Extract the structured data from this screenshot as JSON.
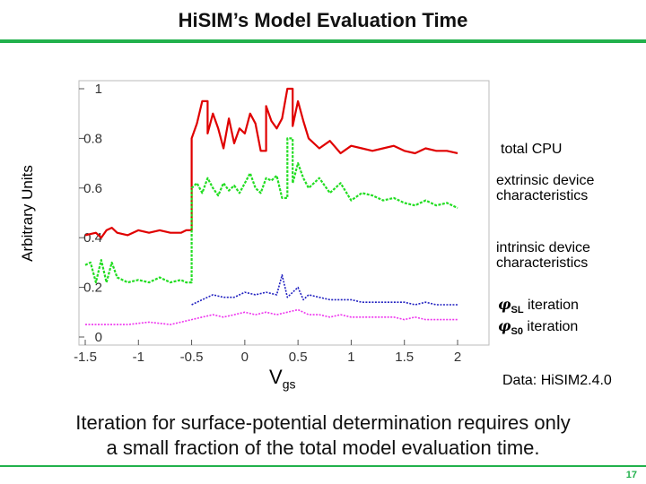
{
  "title": "HiSIM’s Model Evaluation Time",
  "ylabel": "Arbitrary Units",
  "xlabel_main": "V",
  "xlabel_sub": "gs",
  "legend": {
    "total_cpu": "total CPU",
    "extrinsic": "extrinsic device characteristics",
    "intrinsic": "intrinsic device characteristics",
    "phi_sl_sym": "φ",
    "phi_sl_sub": "SL",
    "phi_sl_text": " iteration",
    "phi_s0_sym": "φ",
    "phi_s0_sub": "S0",
    "phi_s0_text": " iteration"
  },
  "note": "Data: HiSIM2.4.0",
  "caption_line1": "Iteration for surface-potential determination requires only",
  "caption_line2": "a small fraction of the total model evaluation time.",
  "page_number": "17",
  "colors": {
    "accent": "#22b14c",
    "total": "#e00000",
    "extrinsic": "#22dd22",
    "phi_sl": "#2020c0",
    "phi_s0": "#ee33ee"
  },
  "chart_data": {
    "type": "line",
    "xlim": [
      -1.5,
      2.0
    ],
    "ylim": [
      0,
      1.0
    ],
    "xticks": [
      "-1.5",
      "-1",
      "-0.5",
      "0",
      "0.5",
      "1",
      "1.5",
      "2"
    ],
    "xtick_values": [
      -1.5,
      -1,
      -0.5,
      0,
      0.5,
      1,
      1.5,
      2
    ],
    "yticks": [
      "0",
      "0.2",
      "0.4",
      "0.6",
      "0.8",
      "1"
    ],
    "ytick_values": [
      0,
      0.2,
      0.4,
      0.6,
      0.8,
      1
    ],
    "grid": false,
    "series": [
      {
        "name": "total CPU",
        "color": "#e00000",
        "x": [
          -1.5,
          -1.4,
          -1.35,
          -1.3,
          -1.25,
          -1.2,
          -1.1,
          -1.0,
          -0.9,
          -0.8,
          -0.7,
          -0.6,
          -0.55,
          -0.5,
          -0.45,
          -0.4,
          -0.35,
          -0.3,
          -0.25,
          -0.2,
          -0.15,
          -0.1,
          -0.05,
          0,
          0.05,
          0.1,
          0.15,
          0.2,
          0.25,
          0.3,
          0.35,
          0.4,
          0.45,
          0.5,
          0.55,
          0.6,
          0.7,
          0.8,
          0.9,
          1.0,
          1.1,
          1.2,
          1.3,
          1.4,
          1.5,
          1.6,
          1.7,
          1.8,
          1.9,
          2.0
        ],
        "y": [
          0.41,
          0.42,
          0.4,
          0.43,
          0.44,
          0.42,
          0.41,
          0.43,
          0.42,
          0.43,
          0.42,
          0.42,
          0.43,
          0.8,
          0.86,
          0.95,
          0.82,
          0.9,
          0.84,
          0.76,
          0.88,
          0.78,
          0.84,
          0.82,
          0.9,
          0.86,
          0.75,
          0.93,
          0.87,
          0.84,
          0.88,
          1.0,
          0.85,
          0.95,
          0.87,
          0.8,
          0.76,
          0.79,
          0.74,
          0.77,
          0.76,
          0.75,
          0.76,
          0.77,
          0.75,
          0.74,
          0.76,
          0.75,
          0.75,
          0.74
        ]
      },
      {
        "name": "extrinsic device characteristics",
        "color": "#22dd22",
        "x": [
          -1.5,
          -1.45,
          -1.4,
          -1.35,
          -1.3,
          -1.25,
          -1.2,
          -1.1,
          -1.0,
          -0.9,
          -0.8,
          -0.7,
          -0.6,
          -0.55,
          -0.5,
          -0.45,
          -0.4,
          -0.35,
          -0.3,
          -0.25,
          -0.2,
          -0.15,
          -0.1,
          -0.05,
          0,
          0.05,
          0.1,
          0.15,
          0.2,
          0.25,
          0.3,
          0.35,
          0.4,
          0.45,
          0.5,
          0.55,
          0.6,
          0.7,
          0.8,
          0.9,
          1.0,
          1.1,
          1.2,
          1.3,
          1.4,
          1.5,
          1.6,
          1.7,
          1.8,
          1.9,
          2.0
        ],
        "y": [
          0.29,
          0.3,
          0.22,
          0.31,
          0.22,
          0.3,
          0.24,
          0.22,
          0.23,
          0.22,
          0.24,
          0.22,
          0.23,
          0.22,
          0.6,
          0.62,
          0.58,
          0.64,
          0.6,
          0.57,
          0.62,
          0.59,
          0.61,
          0.58,
          0.62,
          0.66,
          0.6,
          0.58,
          0.64,
          0.63,
          0.65,
          0.56,
          0.8,
          0.62,
          0.7,
          0.64,
          0.6,
          0.64,
          0.58,
          0.62,
          0.55,
          0.58,
          0.57,
          0.55,
          0.56,
          0.54,
          0.53,
          0.55,
          0.53,
          0.54,
          0.52
        ]
      },
      {
        "name": "φSL iteration",
        "color": "#2020c0",
        "x": [
          -0.5,
          -0.4,
          -0.3,
          -0.2,
          -0.1,
          0,
          0.1,
          0.2,
          0.3,
          0.35,
          0.4,
          0.45,
          0.5,
          0.55,
          0.6,
          0.7,
          0.8,
          0.9,
          1.0,
          1.1,
          1.2,
          1.3,
          1.4,
          1.5,
          1.6,
          1.7,
          1.8,
          1.9,
          2.0
        ],
        "y": [
          0.13,
          0.15,
          0.17,
          0.16,
          0.16,
          0.18,
          0.17,
          0.18,
          0.17,
          0.25,
          0.16,
          0.18,
          0.2,
          0.15,
          0.17,
          0.16,
          0.15,
          0.15,
          0.15,
          0.14,
          0.14,
          0.14,
          0.14,
          0.14,
          0.13,
          0.14,
          0.13,
          0.13,
          0.13
        ]
      },
      {
        "name": "φS0 iteration",
        "color": "#ee33ee",
        "x": [
          -1.5,
          -1.3,
          -1.1,
          -0.9,
          -0.7,
          -0.5,
          -0.4,
          -0.3,
          -0.2,
          -0.1,
          0,
          0.1,
          0.2,
          0.3,
          0.4,
          0.5,
          0.6,
          0.7,
          0.8,
          0.9,
          1.0,
          1.1,
          1.2,
          1.3,
          1.4,
          1.5,
          1.6,
          1.7,
          1.8,
          1.9,
          2.0
        ],
        "y": [
          0.05,
          0.05,
          0.05,
          0.06,
          0.05,
          0.07,
          0.08,
          0.09,
          0.08,
          0.09,
          0.1,
          0.09,
          0.1,
          0.09,
          0.1,
          0.11,
          0.09,
          0.09,
          0.08,
          0.09,
          0.08,
          0.08,
          0.08,
          0.08,
          0.08,
          0.07,
          0.08,
          0.07,
          0.07,
          0.07,
          0.07
        ]
      }
    ]
  }
}
